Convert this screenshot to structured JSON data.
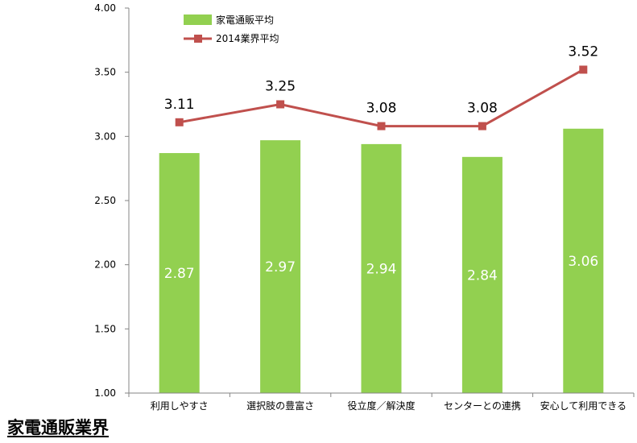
{
  "footer": {
    "title": "家電通販業界"
  },
  "chart_data": {
    "type": "bar",
    "categories": [
      "利用しやすさ",
      "選択肢の豊富さ",
      "役立度／解決度",
      "センターとの連携",
      "安心して利用できる"
    ],
    "series": [
      {
        "name": "家電通販平均",
        "kind": "bar",
        "color": "#92d050",
        "values": [
          2.87,
          2.97,
          2.94,
          2.84,
          3.06
        ],
        "labels": [
          "2.87",
          "2.97",
          "2.94",
          "2.84",
          "3.06"
        ]
      },
      {
        "name": "2014業界平均",
        "kind": "line",
        "color": "#c0504d",
        "values": [
          3.11,
          3.25,
          3.08,
          3.08,
          3.52
        ],
        "labels": [
          "3.11",
          "3.25",
          "3.08",
          "3.08",
          "3.52"
        ]
      }
    ],
    "yticks": [
      "1.00",
      "1.50",
      "2.00",
      "2.50",
      "3.00",
      "3.50",
      "4.00"
    ],
    "ylim": [
      1.0,
      4.0
    ],
    "grid": false,
    "legend_position": "top-left"
  }
}
